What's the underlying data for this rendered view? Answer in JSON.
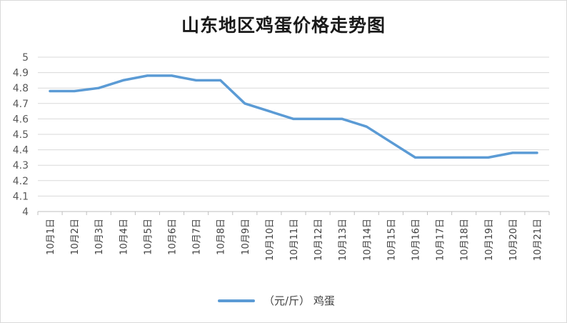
{
  "chart_data": {
    "type": "line",
    "title": "山东地区鸡蛋价格走势图",
    "categories": [
      "10月1日",
      "10月2日",
      "10月3日",
      "10月4日",
      "10月5日",
      "10月6日",
      "10月7日",
      "10月8日",
      "10月9日",
      "10月10日",
      "10月11日",
      "10月12日",
      "10月13日",
      "10月14日",
      "10月15日",
      "10月16日",
      "10月17日",
      "10月18日",
      "10月19日",
      "10月20日",
      "10月21日"
    ],
    "series": [
      {
        "name": "（元/斤） 鸡蛋",
        "color": "#5b9bd5",
        "values": [
          4.78,
          4.78,
          4.8,
          4.85,
          4.88,
          4.88,
          4.85,
          4.85,
          4.7,
          4.65,
          4.6,
          4.6,
          4.6,
          4.55,
          4.45,
          4.35,
          4.35,
          4.35,
          4.35,
          4.38,
          4.38
        ]
      }
    ],
    "ylim": [
      4,
      5
    ],
    "yticks": [
      "4",
      "4.1",
      "4.2",
      "4.3",
      "4.4",
      "4.5",
      "4.6",
      "4.7",
      "4.8",
      "4.9",
      "5"
    ],
    "grid": true,
    "legend_position": "bottom"
  }
}
